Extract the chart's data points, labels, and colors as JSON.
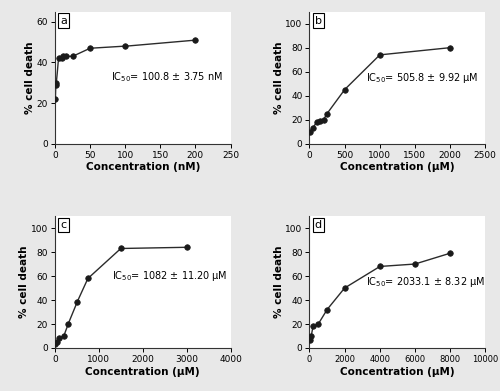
{
  "panel_a": {
    "label": "a",
    "x": [
      0.5,
      1,
      2,
      5,
      10,
      12,
      15,
      25,
      50,
      100,
      200
    ],
    "y": [
      22,
      29,
      30,
      42,
      42,
      43,
      43,
      43,
      47,
      48,
      51
    ],
    "xlabel": "Concentration (nM)",
    "ylabel": "% cell death",
    "xlim": [
      0,
      250
    ],
    "ylim": [
      0,
      65
    ],
    "xticks": [
      0,
      50,
      100,
      150,
      200,
      250
    ],
    "yticks": [
      0,
      20,
      40,
      60
    ],
    "ic50_text": "IC$_{50}$= 100.8 ± 3.75 nM",
    "ic50_x": 80,
    "ic50_y": 33
  },
  "panel_b": {
    "label": "b",
    "x": [
      10,
      50,
      100,
      150,
      200,
      250,
      500,
      1000,
      2000
    ],
    "y": [
      10,
      13,
      18,
      19,
      20,
      25,
      45,
      74,
      80
    ],
    "xlabel": "Concentration (μM)",
    "ylabel": "% cell death",
    "xlim": [
      0,
      2500
    ],
    "ylim": [
      0,
      110
    ],
    "xticks": [
      0,
      500,
      1000,
      1500,
      2000,
      2500
    ],
    "yticks": [
      0,
      20,
      40,
      60,
      80,
      100
    ],
    "ic50_text": "IC$_{50}$= 505.8 ± 9.92 μM",
    "ic50_x": 800,
    "ic50_y": 55
  },
  "panel_c": {
    "label": "c",
    "x": [
      10,
      50,
      100,
      200,
      300,
      500,
      750,
      1500,
      3000
    ],
    "y": [
      3,
      5,
      8,
      10,
      20,
      38,
      58,
      83,
      84
    ],
    "xlabel": "Concentration (μM)",
    "ylabel": "% cell death",
    "xlim": [
      0,
      4000
    ],
    "ylim": [
      0,
      110
    ],
    "xticks": [
      0,
      1000,
      2000,
      3000,
      4000
    ],
    "yticks": [
      0,
      20,
      40,
      60,
      80,
      100
    ],
    "ic50_text": "IC$_{50}$= 1082 ± 11.20 μM",
    "ic50_x": 1300,
    "ic50_y": 60
  },
  "panel_d": {
    "label": "d",
    "x": [
      50,
      100,
      200,
      500,
      1000,
      2000,
      4000,
      6000,
      8000
    ],
    "y": [
      7,
      10,
      18,
      20,
      32,
      50,
      68,
      70,
      79
    ],
    "xlabel": "Concentration (μM)",
    "ylabel": "% cell death",
    "xlim": [
      0,
      10000
    ],
    "ylim": [
      0,
      110
    ],
    "xticks": [
      0,
      2000,
      4000,
      6000,
      8000,
      10000
    ],
    "yticks": [
      0,
      20,
      40,
      60,
      80,
      100
    ],
    "ic50_text": "IC$_{50}$= 2033.1 ± 8.32 μM",
    "ic50_x": 3200,
    "ic50_y": 55
  },
  "line_color": "#2b2b2b",
  "marker_color": "#1a1a1a",
  "marker_size": 4,
  "line_width": 1.0,
  "font_size_label": 7.5,
  "font_size_tick": 6.5,
  "font_size_annot": 7,
  "font_size_panel": 8
}
